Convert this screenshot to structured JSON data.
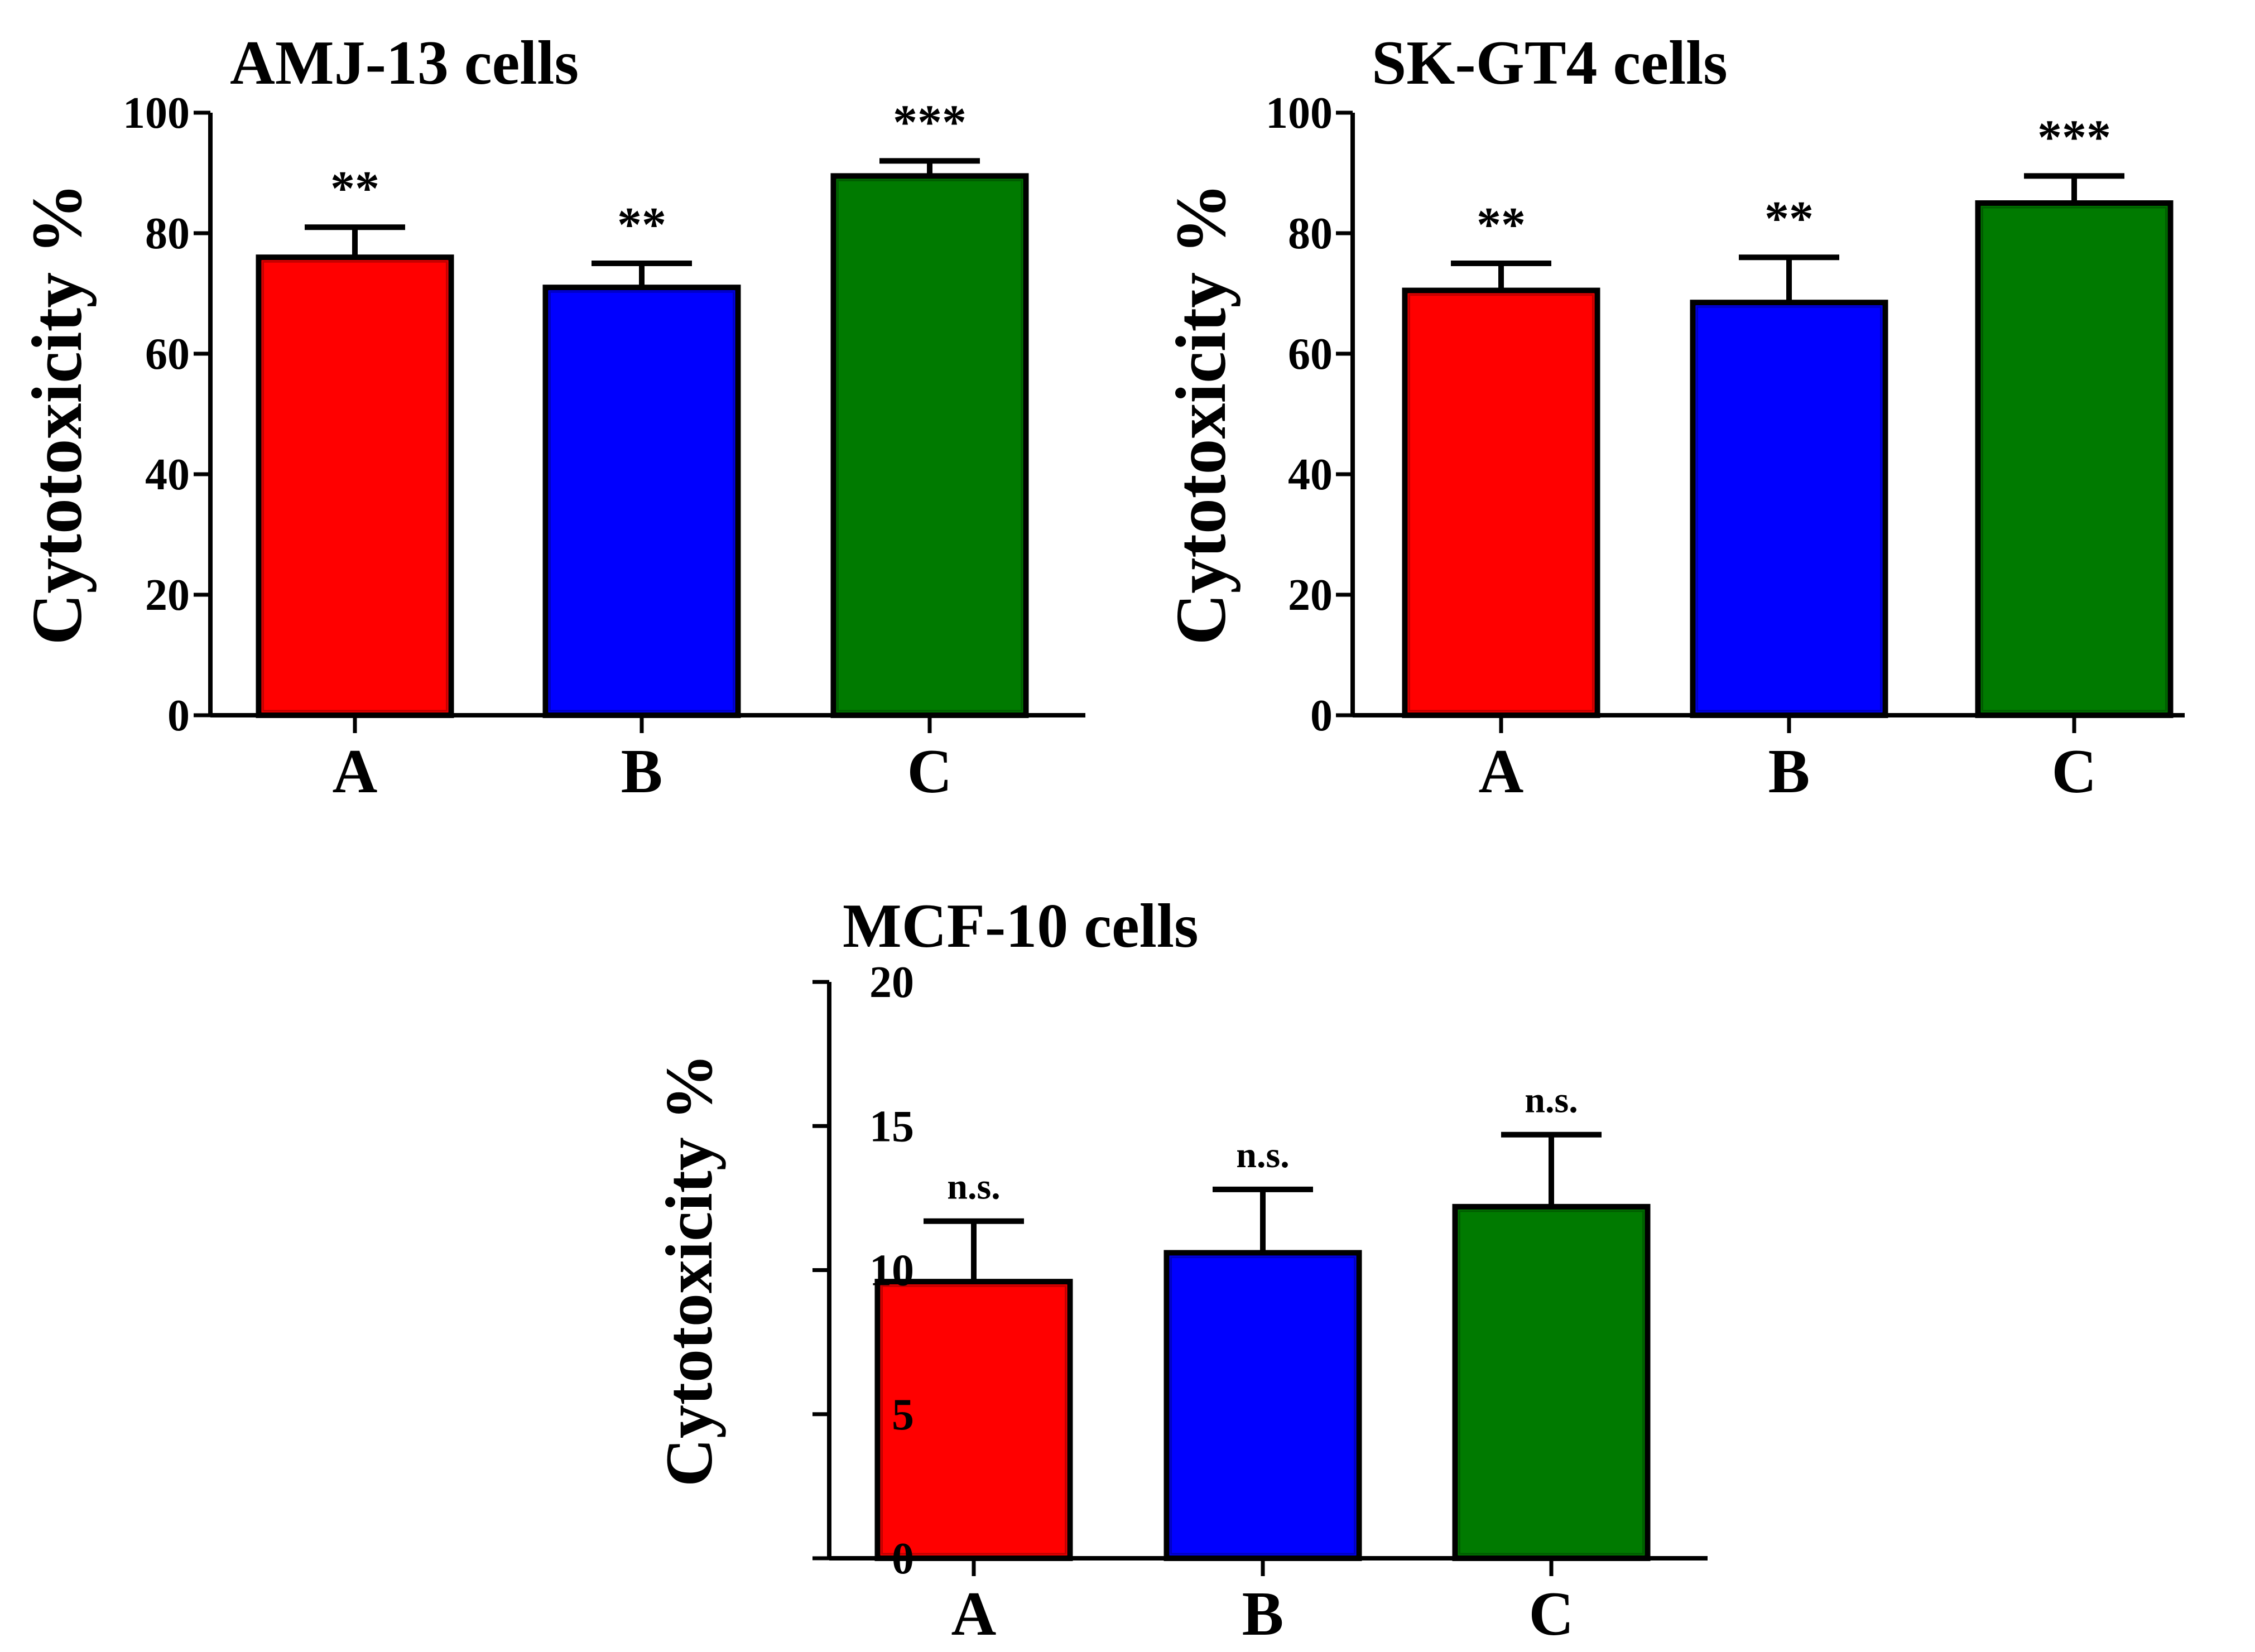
{
  "figure": {
    "background": "#ffffff"
  },
  "chart_data": [
    {
      "type": "bar",
      "title": "AMJ-13 cells",
      "ylabel": "Cytotoxicity %",
      "xlabel": "",
      "categories": [
        "A",
        "B",
        "C"
      ],
      "values": [
        76,
        71,
        89.5
      ],
      "errors": [
        5,
        4,
        2.5
      ],
      "significance": [
        "**",
        "**",
        "***"
      ],
      "colors": [
        "#ff0000",
        "#0000ff",
        "#007a00"
      ],
      "ylim": [
        0,
        100
      ],
      "yticks": [
        0,
        20,
        40,
        60,
        80,
        100
      ],
      "grid": false
    },
    {
      "type": "bar",
      "title": "SK-GT4 cells",
      "ylabel": "Cytotoxicity %",
      "xlabel": "",
      "categories": [
        "A",
        "B",
        "C"
      ],
      "values": [
        70.5,
        68.5,
        85
      ],
      "errors": [
        4.5,
        7.5,
        4.5
      ],
      "significance": [
        "**",
        "**",
        "***"
      ],
      "colors": [
        "#ff0000",
        "#0000ff",
        "#007a00"
      ],
      "ylim": [
        0,
        100
      ],
      "yticks": [
        0,
        20,
        40,
        60,
        80,
        100
      ],
      "grid": false
    },
    {
      "type": "bar",
      "title": "MCF-10 cells",
      "ylabel": "Cytotoxicity %",
      "xlabel": "",
      "categories": [
        "A",
        "B",
        "C"
      ],
      "values": [
        9.6,
        10.6,
        12.2
      ],
      "errors": [
        2.1,
        2.2,
        2.5
      ],
      "significance": [
        "n.s.",
        "n.s.",
        "n.s."
      ],
      "colors": [
        "#ff0000",
        "#0000ff",
        "#007a00"
      ],
      "ylim": [
        0,
        20
      ],
      "yticks": [
        0,
        5,
        10,
        15,
        20
      ],
      "grid": false
    }
  ]
}
